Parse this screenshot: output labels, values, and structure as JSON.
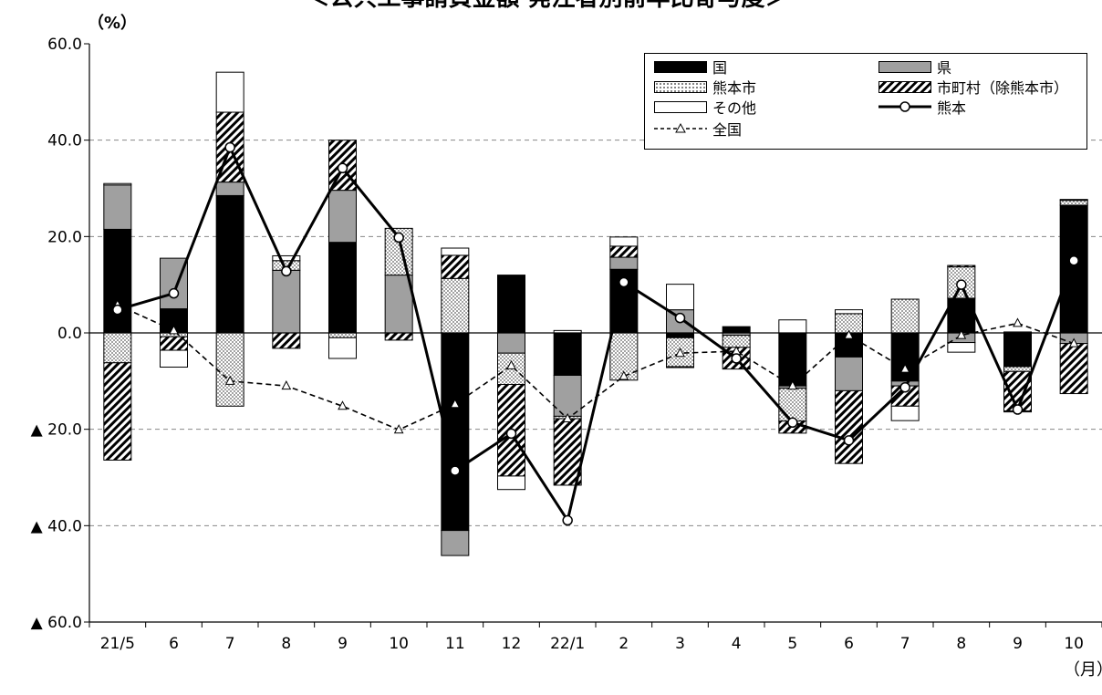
{
  "title": "＜公共工事請負金額 発注者別前年比寄与度＞",
  "unit_label": "（%）",
  "x_unit_label": "（月）",
  "legend": {
    "national": "国",
    "prefecture": "県",
    "kumamoto_city": "熊本市",
    "municipal": "市町村（除熊本市）",
    "other": "その他",
    "kumamoto": "熊本",
    "all_japan": "全国"
  },
  "colors": {
    "national": "#000000",
    "prefecture": "#a0a0a0",
    "other": "#ffffff",
    "grid": "#888888"
  },
  "chart_data": {
    "type": "bar",
    "stacked": true,
    "categories": [
      "21/5",
      "6",
      "7",
      "8",
      "9",
      "10",
      "11",
      "12",
      "22/1",
      "2",
      "3",
      "4",
      "5",
      "6",
      "7",
      "8",
      "9",
      "10"
    ],
    "y_tick_labels": [
      "60.0",
      "40.0",
      "20.0",
      "0.0",
      "▲ 20.0",
      "▲ 40.0",
      "▲ 60.0"
    ],
    "ylim": [
      -60,
      60
    ],
    "grid": true,
    "legend_position": "top-right",
    "series": [
      {
        "name": "国",
        "type": "bar",
        "values": [
          21.5,
          5,
          28.5,
          0,
          18.8,
          0,
          -41,
          12,
          -8.8,
          13.2,
          -1,
          1.3,
          -11,
          -5,
          -10,
          7.2,
          -7,
          26.5
        ]
      },
      {
        "name": "県",
        "type": "bar",
        "values": [
          9.2,
          10.5,
          2.8,
          13,
          10.8,
          12,
          -5.2,
          -4.2,
          -8.5,
          2.5,
          4.8,
          -0.5,
          -0.5,
          -7,
          -1,
          -2,
          0.2,
          -2.2
        ]
      },
      {
        "name": "熊本市",
        "type": "bar",
        "values": [
          -6.2,
          -0.8,
          -15.2,
          2,
          -1,
          9.7,
          11.3,
          -6.5,
          -0.5,
          -9.8,
          -6,
          -2.5,
          -6.8,
          4,
          7,
          6.5,
          -1,
          1
        ]
      },
      {
        "name": "市町村（除熊本市）",
        "type": "bar",
        "values": [
          -20.2,
          -2.8,
          14.5,
          -3.2,
          10.4,
          -1.5,
          4.8,
          -19,
          -13.8,
          2.3,
          -0.2,
          -4.5,
          -2.5,
          -15.1,
          -4.2,
          0.3,
          -8.2,
          -10.4
        ]
      },
      {
        "name": "その他",
        "type": "bar",
        "values": [
          0.3,
          -3.5,
          8.3,
          1,
          -4.3,
          0,
          1.5,
          -2.8,
          0.5,
          1.9,
          5.3,
          0,
          2.7,
          0.8,
          -3,
          -2,
          -0.2,
          0.2
        ]
      },
      {
        "name": "熊本",
        "type": "line",
        "values": [
          4.8,
          8.2,
          38.5,
          12.8,
          34.2,
          19.8,
          -28.6,
          -20.9,
          -38.9,
          10.5,
          3.1,
          -5.3,
          -18.6,
          -22.3,
          -11.3,
          10,
          -15.9,
          15
        ]
      },
      {
        "name": "全国",
        "type": "line",
        "values": [
          5.8,
          0.5,
          -10,
          -11,
          -15.2,
          -20.1,
          -14.8,
          -6.8,
          -17.8,
          -9,
          -4.2,
          -3.8,
          -11,
          -0.5,
          -7.5,
          -0.5,
          2,
          -2.2
        ]
      }
    ]
  }
}
